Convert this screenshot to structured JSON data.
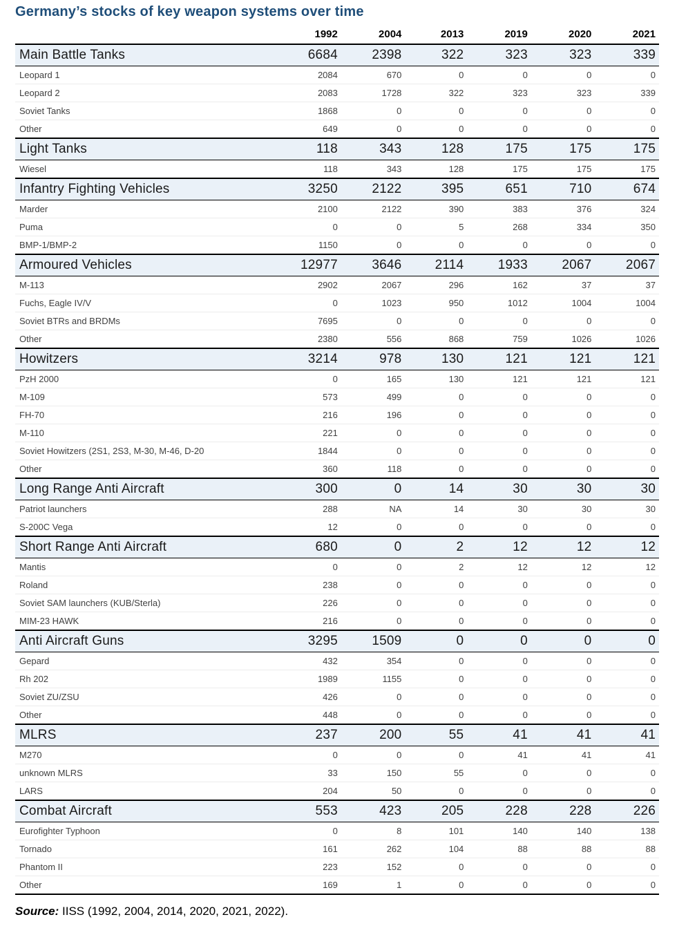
{
  "title": "Germany’s stocks of key weapon systems over time",
  "source": {
    "label": "Source:",
    "text": " IISS (1992, 2004, 2014, 2020, 2021, 2022)."
  },
  "chart_data": {
    "type": "table",
    "title": "Germany’s stocks of key weapon systems over time",
    "columns": [
      "1992",
      "2004",
      "2013",
      "2019",
      "2020",
      "2021"
    ],
    "groups": [
      {
        "category": "Main Battle Tanks",
        "totals": [
          "6684",
          "2398",
          "322",
          "323",
          "323",
          "339"
        ],
        "rows": [
          {
            "label": "Leopard 1",
            "values": [
              "2084",
              "670",
              "0",
              "0",
              "0",
              "0"
            ]
          },
          {
            "label": "Leopard 2",
            "values": [
              "2083",
              "1728",
              "322",
              "323",
              "323",
              "339"
            ]
          },
          {
            "label": "Soviet Tanks",
            "values": [
              "1868",
              "0",
              "0",
              "0",
              "0",
              "0"
            ]
          },
          {
            "label": "Other",
            "values": [
              "649",
              "0",
              "0",
              "0",
              "0",
              "0"
            ]
          }
        ]
      },
      {
        "category": "Light Tanks",
        "totals": [
          "118",
          "343",
          "128",
          "175",
          "175",
          "175"
        ],
        "rows": [
          {
            "label": "Wiesel",
            "values": [
              "118",
              "343",
              "128",
              "175",
              "175",
              "175"
            ]
          }
        ]
      },
      {
        "category": "Infantry Fighting Vehicles",
        "totals": [
          "3250",
          "2122",
          "395",
          "651",
          "710",
          "674"
        ],
        "rows": [
          {
            "label": "Marder",
            "values": [
              "2100",
              "2122",
              "390",
              "383",
              "376",
              "324"
            ]
          },
          {
            "label": "Puma",
            "values": [
              "0",
              "0",
              "5",
              "268",
              "334",
              "350"
            ]
          },
          {
            "label": "BMP-1/BMP-2",
            "values": [
              "1150",
              "0",
              "0",
              "0",
              "0",
              "0"
            ]
          }
        ]
      },
      {
        "category": "Armoured Vehicles",
        "totals": [
          "12977",
          "3646",
          "2114",
          "1933",
          "2067",
          "2067"
        ],
        "rows": [
          {
            "label": "M-113",
            "values": [
              "2902",
              "2067",
              "296",
              "162",
              "37",
              "37"
            ]
          },
          {
            "label": "Fuchs, Eagle IV/V",
            "values": [
              "0",
              "1023",
              "950",
              "1012",
              "1004",
              "1004"
            ]
          },
          {
            "label": "Soviet BTRs and BRDMs",
            "values": [
              "7695",
              "0",
              "0",
              "0",
              "0",
              "0"
            ]
          },
          {
            "label": "Other",
            "values": [
              "2380",
              "556",
              "868",
              "759",
              "1026",
              "1026"
            ]
          }
        ]
      },
      {
        "category": "Howitzers",
        "totals": [
          "3214",
          "978",
          "130",
          "121",
          "121",
          "121"
        ],
        "rows": [
          {
            "label": "PzH 2000",
            "values": [
              "0",
              "165",
              "130",
              "121",
              "121",
              "121"
            ]
          },
          {
            "label": "M-109",
            "values": [
              "573",
              "499",
              "0",
              "0",
              "0",
              "0"
            ]
          },
          {
            "label": "FH-70",
            "values": [
              "216",
              "196",
              "0",
              "0",
              "0",
              "0"
            ]
          },
          {
            "label": "M-110",
            "values": [
              "221",
              "0",
              "0",
              "0",
              "0",
              "0"
            ]
          },
          {
            "label": "Soviet Howitzers (2S1, 2S3, M-30, M-46, D-20",
            "values": [
              "1844",
              "0",
              "0",
              "0",
              "0",
              "0"
            ]
          },
          {
            "label": "Other",
            "values": [
              "360",
              "118",
              "0",
              "0",
              "0",
              "0"
            ]
          }
        ]
      },
      {
        "category": "Long Range Anti Aircraft",
        "totals": [
          "300",
          "0",
          "14",
          "30",
          "30",
          "30"
        ],
        "rows": [
          {
            "label": "Patriot launchers",
            "values": [
              "288",
              "NA",
              "14",
              "30",
              "30",
              "30"
            ]
          },
          {
            "label": "S-200C Vega",
            "values": [
              "12",
              "0",
              "0",
              "0",
              "0",
              "0"
            ]
          }
        ]
      },
      {
        "category": "Short Range Anti Aircraft",
        "totals": [
          "680",
          "0",
          "2",
          "12",
          "12",
          "12"
        ],
        "rows": [
          {
            "label": "Mantis",
            "values": [
              "0",
              "0",
              "2",
              "12",
              "12",
              "12"
            ]
          },
          {
            "label": "Roland",
            "values": [
              "238",
              "0",
              "0",
              "0",
              "0",
              "0"
            ]
          },
          {
            "label": "Soviet SAM launchers (KUB/Sterla)",
            "values": [
              "226",
              "0",
              "0",
              "0",
              "0",
              "0"
            ]
          },
          {
            "label": "MIM-23 HAWK",
            "values": [
              "216",
              "0",
              "0",
              "0",
              "0",
              "0"
            ]
          }
        ]
      },
      {
        "category": "Anti Aircraft Guns",
        "totals": [
          "3295",
          "1509",
          "0",
          "0",
          "0",
          "0"
        ],
        "rows": [
          {
            "label": "Gepard",
            "values": [
              "432",
              "354",
              "0",
              "0",
              "0",
              "0"
            ]
          },
          {
            "label": "Rh 202",
            "values": [
              "1989",
              "1155",
              "0",
              "0",
              "0",
              "0"
            ]
          },
          {
            "label": "Soviet ZU/ZSU",
            "values": [
              "426",
              "0",
              "0",
              "0",
              "0",
              "0"
            ]
          },
          {
            "label": "Other",
            "values": [
              "448",
              "0",
              "0",
              "0",
              "0",
              "0"
            ]
          }
        ]
      },
      {
        "category": "MLRS",
        "totals": [
          "237",
          "200",
          "55",
          "41",
          "41",
          "41"
        ],
        "rows": [
          {
            "label": "M270",
            "values": [
              "0",
              "0",
              "0",
              "41",
              "41",
              "41"
            ]
          },
          {
            "label": "unknown MLRS",
            "values": [
              "33",
              "150",
              "55",
              "0",
              "0",
              "0"
            ]
          },
          {
            "label": "LARS",
            "values": [
              "204",
              "50",
              "0",
              "0",
              "0",
              "0"
            ]
          }
        ]
      },
      {
        "category": "Combat Aircraft",
        "totals": [
          "553",
          "423",
          "205",
          "228",
          "228",
          "226"
        ],
        "rows": [
          {
            "label": "Eurofighter Typhoon",
            "values": [
              "0",
              "8",
              "101",
              "140",
              "140",
              "138"
            ]
          },
          {
            "label": "Tornado",
            "values": [
              "161",
              "262",
              "104",
              "88",
              "88",
              "88"
            ]
          },
          {
            "label": "Phantom II",
            "values": [
              "223",
              "152",
              "0",
              "0",
              "0",
              "0"
            ]
          },
          {
            "label": "Other",
            "values": [
              "169",
              "1",
              "0",
              "0",
              "0",
              "0"
            ]
          }
        ]
      }
    ],
    "layout": {
      "category_background": "#EAF1F8",
      "title_color": "#1F4E79",
      "value_alignment": "right"
    },
    "source": "IISS (1992, 2004, 2014, 2020, 2021, 2022)."
  }
}
